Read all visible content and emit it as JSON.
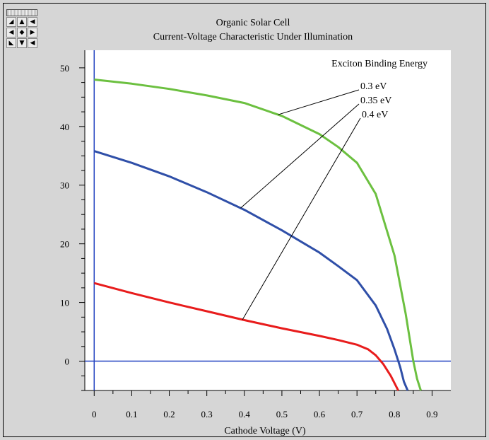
{
  "nav_pad": {
    "buttons": [
      {
        "name": "pan-down-right-icon",
        "glyph": "◢"
      },
      {
        "name": "pan-up-icon",
        "glyph": "▲"
      },
      {
        "name": "pan-left-up-icon",
        "glyph": "◀"
      },
      {
        "name": "pan-left-icon",
        "glyph": "◀"
      },
      {
        "name": "center-icon",
        "glyph": "◆"
      },
      {
        "name": "pan-right-icon",
        "glyph": "▶"
      },
      {
        "name": "pan-up-right-icon",
        "glyph": "◣"
      },
      {
        "name": "pan-down-icon",
        "glyph": "▼"
      },
      {
        "name": "pan-down-left-icon",
        "glyph": "◀"
      }
    ]
  },
  "colors": {
    "background": "#d6d6d6",
    "axis": "#2040c0",
    "green": "#6cc040",
    "blue": "#2f4fa8",
    "red": "#e81c1c"
  },
  "chart_data": {
    "type": "line",
    "title": "Organic Solar Cell",
    "subtitle": "Current-Voltage Characteristic Under Illumination",
    "xlabel": "Cathode Voltage (V)",
    "ylabel": "",
    "xlim": [
      -0.025,
      0.95
    ],
    "ylim": [
      -5,
      53
    ],
    "x_ticks": [
      0,
      0.1,
      0.2,
      0.3,
      0.4,
      0.5,
      0.6,
      0.7,
      0.8,
      0.9
    ],
    "x_tick_labels": [
      "0",
      "0.1",
      "0.2",
      "0.3",
      "0.4",
      "0.5",
      "0.6",
      "0.7",
      "0.8",
      "0.9"
    ],
    "y_ticks": [
      0,
      10,
      20,
      30,
      40,
      50
    ],
    "y_tick_labels": [
      "0",
      "10",
      "20",
      "30",
      "40",
      "50"
    ],
    "grid": false,
    "legend_title": "Exciton Binding Energy",
    "series": [
      {
        "name": "0.3 eV",
        "color": "#6cc040",
        "x": [
          0,
          0.1,
          0.2,
          0.3,
          0.4,
          0.5,
          0.6,
          0.65,
          0.7,
          0.75,
          0.8,
          0.83,
          0.85,
          0.86,
          0.87
        ],
        "y": [
          48,
          47.3,
          46.4,
          45.3,
          44,
          41.8,
          38.7,
          36.5,
          33.8,
          28.5,
          18,
          8,
          0,
          -3,
          -5
        ],
        "label": "0.3 eV",
        "pointer_x": 0.49
      },
      {
        "name": "0.35 eV",
        "color": "#2f4fa8",
        "x": [
          0,
          0.1,
          0.2,
          0.3,
          0.4,
          0.5,
          0.6,
          0.65,
          0.7,
          0.75,
          0.78,
          0.8,
          0.815,
          0.825,
          0.835
        ],
        "y": [
          35.8,
          33.8,
          31.5,
          28.8,
          25.8,
          22.3,
          18.5,
          16.2,
          13.8,
          9.5,
          5.5,
          2,
          -1,
          -3.5,
          -5
        ],
        "label": "0.35 eV",
        "pointer_x": 0.39
      },
      {
        "name": "0.4 eV",
        "color": "#e81c1c",
        "x": [
          0,
          0.1,
          0.2,
          0.3,
          0.4,
          0.5,
          0.6,
          0.65,
          0.7,
          0.73,
          0.75,
          0.77,
          0.79,
          0.81
        ],
        "y": [
          13.3,
          11.6,
          10,
          8.5,
          7,
          5.6,
          4.3,
          3.6,
          2.8,
          2,
          1,
          -0.5,
          -2.5,
          -5
        ],
        "label": "0.4 eV",
        "pointer_x": 0.395
      }
    ],
    "reference_lines": [
      {
        "orientation": "horizontal",
        "value": 0
      },
      {
        "orientation": "vertical",
        "value": 0
      }
    ]
  }
}
